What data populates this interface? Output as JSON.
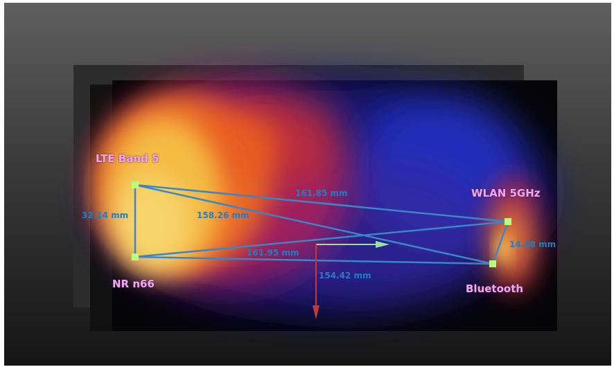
{
  "antennas": {
    "lte_band5": "LTE Band 5",
    "nr_n66": "NR n66",
    "wlan_5ghz": "WLAN 5GHz",
    "bluetooth": "Bluetooth"
  },
  "measurements": {
    "lte_to_nr": "32.14 mm",
    "lte_to_bt": "158.26 mm",
    "lte_to_wlan": "161.85 mm",
    "nr_to_wlan": "161.95 mm",
    "nr_to_bt": "154.42 mm",
    "wlan_to_bt": "14.08 mm"
  },
  "colors": {
    "label": "#f0a8f0",
    "measure_line": "#3a86c8",
    "marker": "#b8ff7a"
  }
}
